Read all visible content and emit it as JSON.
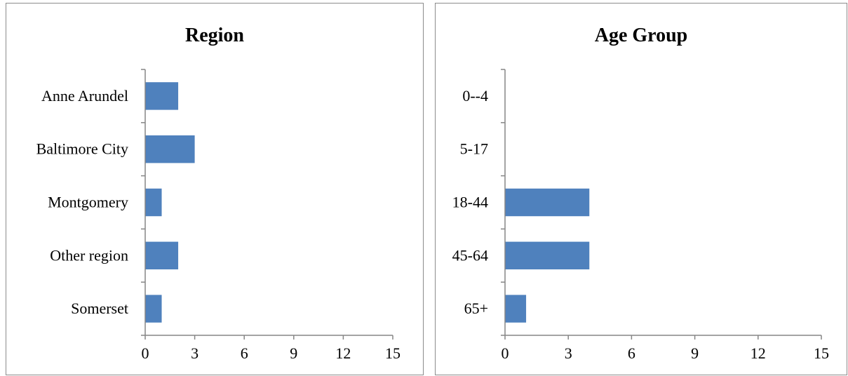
{
  "chart_data": [
    {
      "type": "bar",
      "orientation": "horizontal",
      "title": "Region",
      "categories": [
        "Anne Arundel",
        "Baltimore City",
        "Montgomery",
        "Other region",
        "Somerset"
      ],
      "values": [
        2,
        3,
        1,
        2,
        1
      ],
      "xlim": [
        0,
        15
      ],
      "xticks": [
        "0",
        "3",
        "6",
        "9",
        "12",
        "15"
      ],
      "grid": false,
      "legend": "none",
      "bar_color": "#4f81bd"
    },
    {
      "type": "bar",
      "orientation": "horizontal",
      "title": "Age Group",
      "categories": [
        "0--4",
        "5-17",
        "18-44",
        "45-64",
        "65+"
      ],
      "values": [
        0,
        0,
        4,
        4,
        1
      ],
      "xlim": [
        0,
        15
      ],
      "xticks": [
        "0",
        "3",
        "6",
        "9",
        "12",
        "15"
      ],
      "grid": false,
      "legend": "none",
      "bar_color": "#4f81bd"
    }
  ]
}
